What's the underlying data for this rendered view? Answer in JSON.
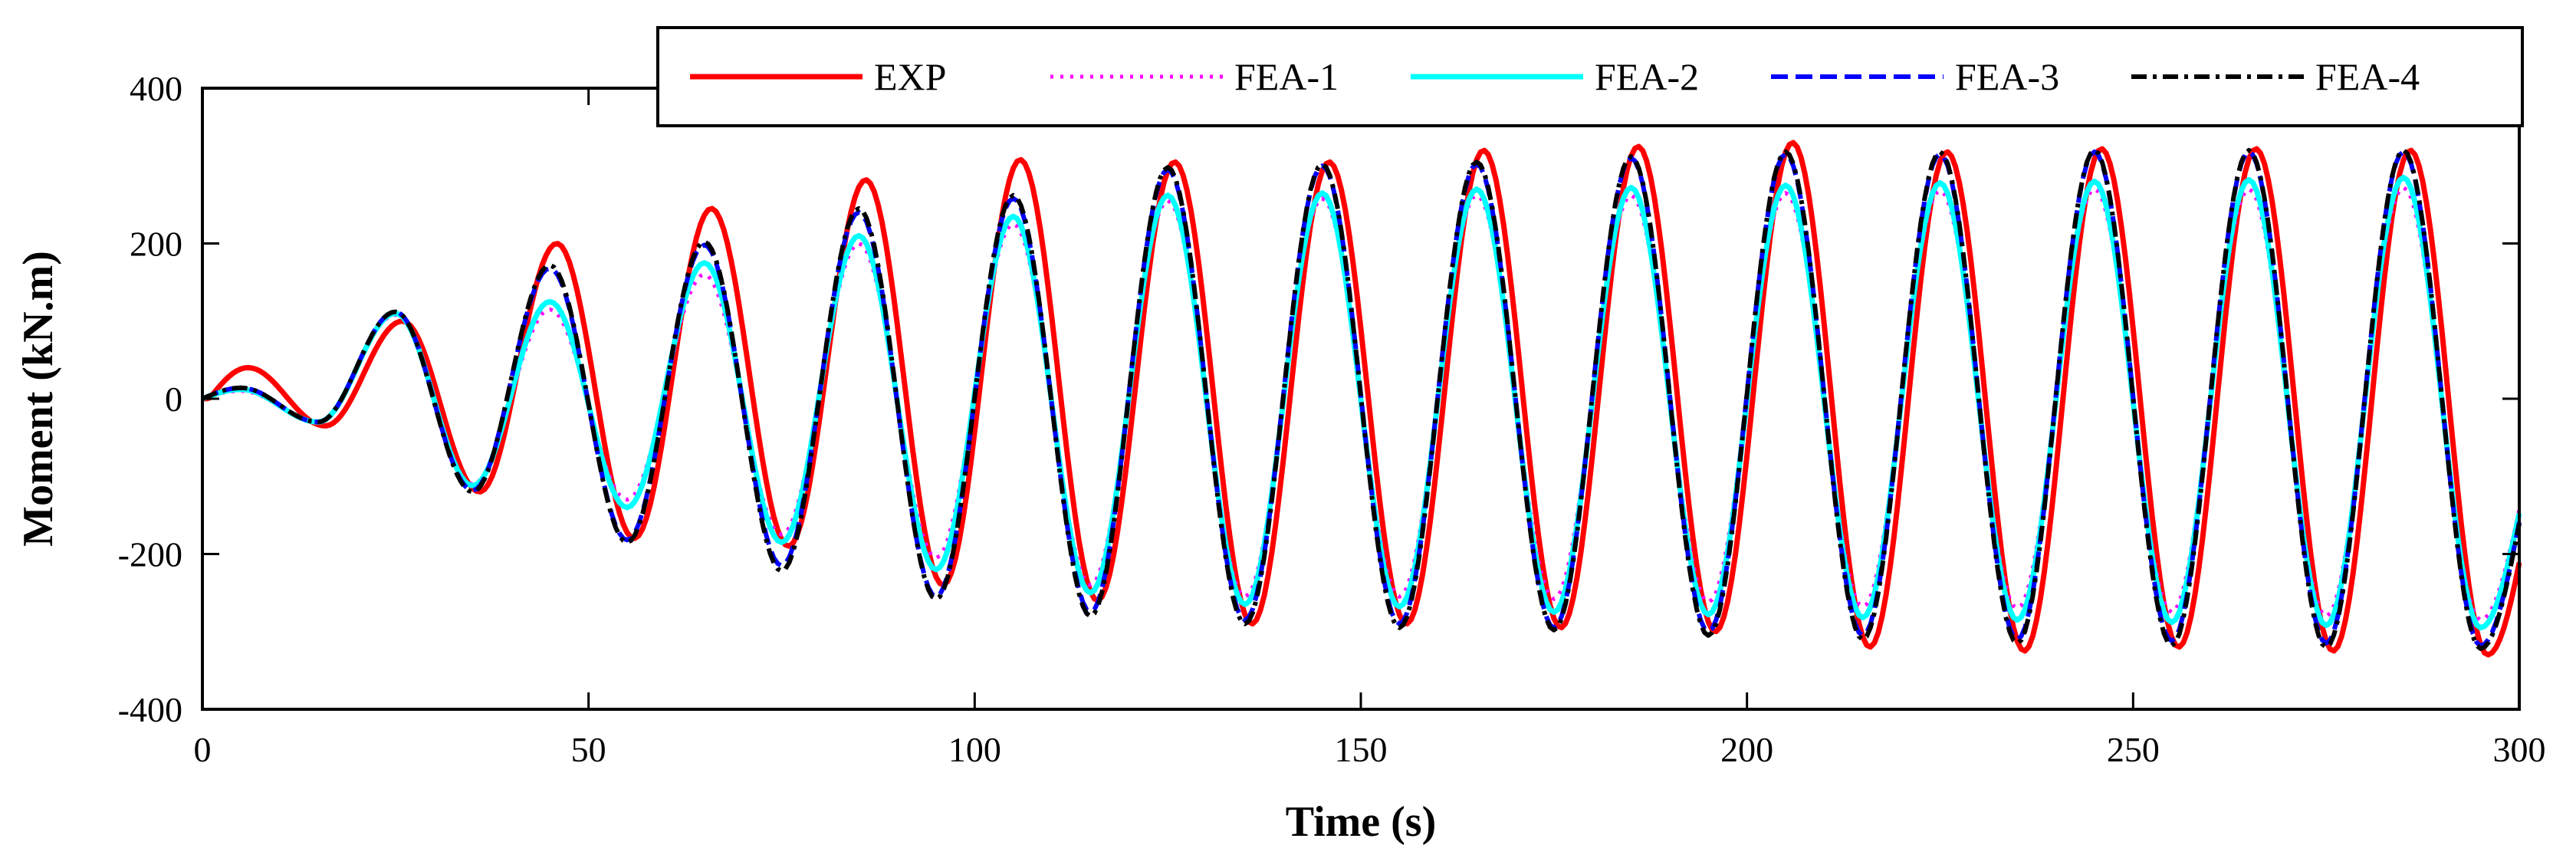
{
  "chart_data": {
    "type": "line",
    "title": "",
    "xlabel": "Time (s)",
    "ylabel": "Moment (kN.m)",
    "xlim": [
      0,
      300
    ],
    "ylim": [
      -400,
      400
    ],
    "xticks": [
      0,
      50,
      100,
      150,
      200,
      250,
      300
    ],
    "yticks": [
      -400,
      -200,
      0,
      200,
      400
    ],
    "grid": false,
    "legend_position": "top-right",
    "period": 20,
    "series": [
      {
        "name": "EXP",
        "color": "#ff0000",
        "style": "solid",
        "phase_lag": 0.9,
        "peaks": [
          0,
          40,
          -35,
          100,
          -120,
          200,
          -180,
          245,
          -190,
          282,
          -240,
          308,
          -260,
          305,
          -290,
          305,
          -290,
          320,
          -295,
          325,
          -300,
          330,
          -320,
          318,
          -325,
          322,
          -320,
          322,
          -325,
          320,
          -330,
          0
        ]
      },
      {
        "name": "FEA-1",
        "color": "#ff00ff",
        "style": "dotted",
        "phase_lag": 0,
        "peaks": [
          0,
          10,
          -30,
          108,
          -110,
          115,
          -130,
          160,
          -175,
          200,
          -205,
          225,
          -240,
          255,
          -255,
          258,
          -255,
          262,
          -258,
          262,
          -262,
          265,
          -268,
          268,
          -270,
          270,
          -275,
          270,
          -280,
          272,
          -285,
          0
        ]
      },
      {
        "name": "FEA-2",
        "color": "#00ffff",
        "style": "solid",
        "phase_lag": 0,
        "peaks": [
          0,
          12,
          -30,
          110,
          -112,
          125,
          -140,
          175,
          -185,
          210,
          -220,
          235,
          -250,
          262,
          -265,
          265,
          -268,
          270,
          -275,
          272,
          -278,
          275,
          -282,
          278,
          -285,
          280,
          -288,
          282,
          -292,
          285,
          -295,
          0
        ]
      },
      {
        "name": "FEA-3",
        "color": "#0000ff",
        "style": "dashed",
        "phase_lag": 0,
        "peaks": [
          0,
          14,
          -30,
          112,
          -118,
          168,
          -182,
          198,
          -215,
          240,
          -255,
          258,
          -275,
          295,
          -285,
          300,
          -290,
          302,
          -295,
          310,
          -300,
          315,
          -305,
          315,
          -310,
          318,
          -312,
          318,
          -315,
          318,
          -318,
          0
        ]
      },
      {
        "name": "FEA-4",
        "color": "#000000",
        "style": "dashdot",
        "phase_lag": 0,
        "peaks": [
          0,
          14,
          -30,
          112,
          -120,
          172,
          -185,
          202,
          -222,
          245,
          -258,
          262,
          -280,
          298,
          -290,
          302,
          -295,
          305,
          -298,
          312,
          -305,
          318,
          -310,
          318,
          -315,
          320,
          -318,
          320,
          -320,
          320,
          -322,
          0
        ]
      }
    ]
  }
}
